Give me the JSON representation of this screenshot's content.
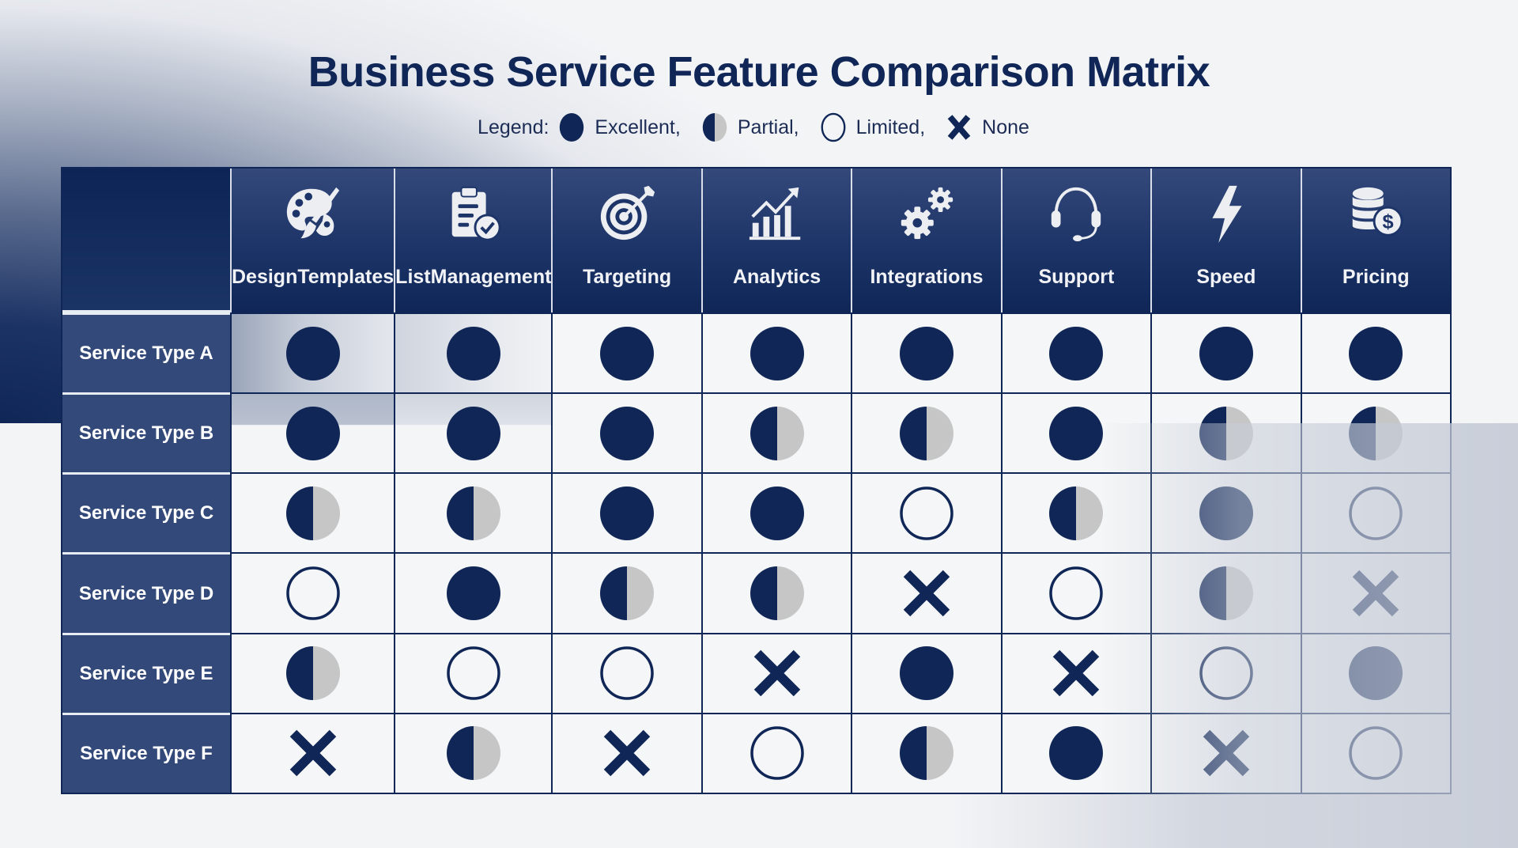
{
  "title": "Business Service Feature Comparison Matrix",
  "legend": {
    "label": "Legend:",
    "items": [
      {
        "key": "excellent",
        "label": "Excellent,",
        "icon": "full-circle-icon"
      },
      {
        "key": "partial",
        "label": "Partial,",
        "icon": "half-circle-icon"
      },
      {
        "key": "limited",
        "label": "Limited,",
        "icon": "empty-circle-icon"
      },
      {
        "key": "none",
        "label": "None",
        "icon": "x-mark-icon"
      }
    ]
  },
  "colors": {
    "navy": "#0f2657",
    "row_label_bg": "#33497a",
    "partial_grey": "#c6c6c6",
    "header_top": "#34497a",
    "background": "#f3f4f6"
  },
  "columns": [
    {
      "label": "Design Templates",
      "lines": [
        "Design",
        "Templates"
      ],
      "icon": "palette-brush-icon"
    },
    {
      "label": "List Management",
      "lines": [
        "List",
        "Management"
      ],
      "icon": "clipboard-check-icon"
    },
    {
      "label": "Targeting",
      "lines": [
        "Targeting"
      ],
      "icon": "target-arrow-icon"
    },
    {
      "label": "Analytics",
      "lines": [
        "Analytics"
      ],
      "icon": "bar-chart-trend-icon"
    },
    {
      "label": "Integrations",
      "lines": [
        "Integrations"
      ],
      "icon": "gears-icon"
    },
    {
      "label": "Support",
      "lines": [
        "Support"
      ],
      "icon": "headset-icon"
    },
    {
      "label": "Speed",
      "lines": [
        "Speed"
      ],
      "icon": "lightning-bolt-icon"
    },
    {
      "label": "Pricing",
      "lines": [
        "Pricing"
      ],
      "icon": "coins-dollar-icon"
    }
  ],
  "rows": [
    {
      "label": "Service Type A",
      "values": [
        "excellent",
        "excellent",
        "excellent",
        "excellent",
        "excellent",
        "excellent",
        "excellent",
        "excellent"
      ]
    },
    {
      "label": "Service Type B",
      "values": [
        "excellent",
        "excellent",
        "excellent",
        "partial",
        "partial",
        "excellent",
        "partial",
        "partial"
      ]
    },
    {
      "label": "Service Type C",
      "values": [
        "partial",
        "partial",
        "excellent",
        "excellent",
        "limited",
        "partial",
        "excellent",
        "limited"
      ]
    },
    {
      "label": "Service Type D",
      "values": [
        "limited",
        "excellent",
        "partial",
        "partial",
        "none",
        "limited",
        "partial",
        "none"
      ]
    },
    {
      "label": "Service Type E",
      "values": [
        "partial",
        "limited",
        "limited",
        "none",
        "excellent",
        "none",
        "limited",
        "excellent"
      ]
    },
    {
      "label": "Service Type F",
      "values": [
        "none",
        "partial",
        "none",
        "limited",
        "partial",
        "excellent",
        "none",
        "limited"
      ]
    }
  ]
}
